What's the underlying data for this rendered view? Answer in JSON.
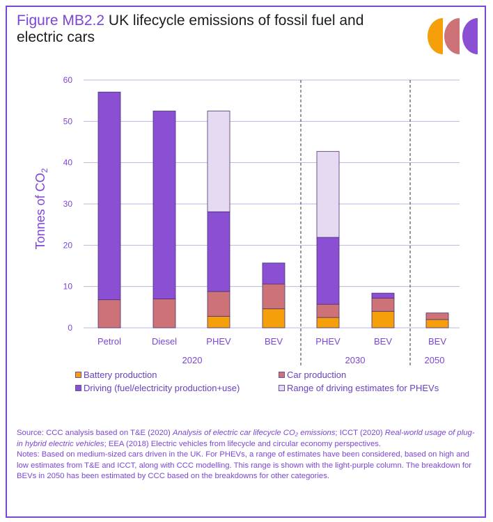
{
  "figure_label": "Figure MB2.2",
  "figure_title": " UK lifecycle emissions of fossil fuel and electric cars",
  "colors": {
    "frame": "#7b45d6",
    "battery": "#f5a00a",
    "car": "#cd7378",
    "driving": "#8a4fd2",
    "range": "#e6d9f2",
    "logo": [
      "#f5a00a",
      "#cd7378",
      "#8a4fd2"
    ]
  },
  "legend": {
    "battery": "Battery production",
    "car": "Car production",
    "driving": "Driving (fuel/electricity production+use)",
    "range": "Range of driving estimates for PHEVs"
  },
  "chart_data": {
    "type": "bar",
    "stacked": true,
    "ylabel": "Tonnes of CO2",
    "ylabel_main": "Tonnes of CO",
    "ylabel_sub": "2",
    "ylim": [
      0,
      60
    ],
    "yticks": [
      0,
      10,
      20,
      30,
      40,
      50,
      60
    ],
    "grid": true,
    "categories": [
      "Petrol",
      "Diesel",
      "PHEV",
      "BEV",
      "PHEV",
      "BEV",
      "BEV"
    ],
    "groups": [
      {
        "label": "2020",
        "members": [
          0,
          1,
          2,
          3
        ]
      },
      {
        "label": "2030",
        "members": [
          4,
          5
        ]
      },
      {
        "label": "2050",
        "members": [
          6
        ]
      }
    ],
    "series": [
      {
        "name": "Battery production",
        "key": "battery",
        "values": [
          0,
          0,
          2.8,
          4.6,
          2.5,
          4.0,
          2.0
        ]
      },
      {
        "name": "Car production",
        "key": "car",
        "values": [
          6.8,
          7.0,
          6.0,
          6.0,
          3.2,
          3.2,
          1.6
        ]
      },
      {
        "name": "Driving (fuel/electricity production+use)",
        "key": "driving",
        "values": [
          50.3,
          45.5,
          19.3,
          5.1,
          16.2,
          1.2,
          0
        ]
      },
      {
        "name": "Range of driving estimates for PHEVs",
        "key": "range",
        "values": [
          0,
          0,
          24.4,
          0,
          20.8,
          0,
          0
        ]
      }
    ]
  },
  "source": {
    "line1_a": "Source: CCC analysis based on T&E (2020) ",
    "line1_italic": "Analysis of electric car lifecycle CO₂ emissions",
    "line1_b": "; ICCT (2020) ",
    "line1_italic2": "Real-world usage of plug-in hybrid electric vehicles",
    "line1_c": "; EEA (2018) Electric vehicles from lifecycle and circular economy perspectives.",
    "notes": "Notes: Based on medium-sized cars driven in the UK. For PHEVs, a range of estimates have been considered, based on high and low estimates from T&E and ICCT, along with CCC modelling. This range is shown with the light-purple column. The breakdown for BEVs in 2050 has been estimated by CCC based on the breakdowns for other categories."
  }
}
